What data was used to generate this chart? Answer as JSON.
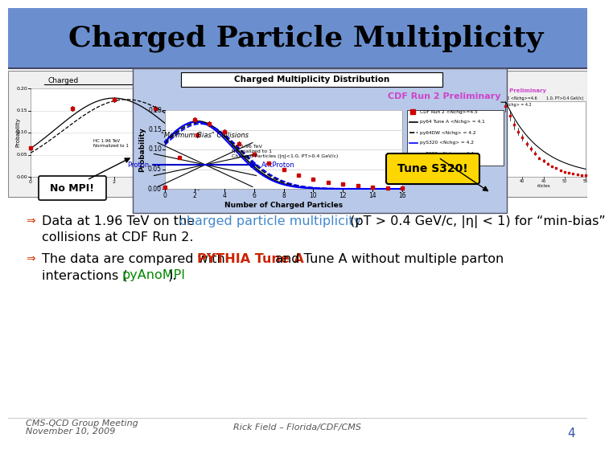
{
  "title": "Charged Particle Multiplicity",
  "title_bg": "#6B8FCE",
  "slide_bg": "#FFFFFF",
  "plot_main_bg": "#B8C8E8",
  "plot_side_bg": "#E8E8E8",
  "plot_inner_bg": "#D0D8F0",
  "nomi_label": "No MPI!",
  "tune_label": "Tune S320!",
  "tune_bg": "#FFD700",
  "collisions_label": "\"Minimum Bias\" Collisions",
  "proton_label": "Proton",
  "antiproton_label": "AntProton",
  "arrow_color": "#0000CC",
  "bullet1_pre": "Data at 1.96 TeV on the ",
  "bullet1_col": "charged particle multiplicity",
  "bullet1_col_color": "#4488CC",
  "bullet1_post": " (p",
  "bullet1_sub": "T",
  "bullet1_post2": " > 0.4 GeV/c, |η| < 1) for “min-bias”",
  "bullet1_line2": "collisions at CDF Run 2.",
  "bullet2_pre": "The data are compared with ",
  "bullet2_col1": "PYTHIA Tune A",
  "bullet2_col1_color": "#CC2200",
  "bullet2_mid": " and Tune A without multiple parton",
  "bullet2_line2_pre": "interactions (",
  "bullet2_col2": "pyAnoMPI",
  "bullet2_col2_color": "#008800",
  "bullet2_line2_post": ").",
  "footer_l1": "CMS-QCD Group Meeting",
  "footer_l2": "November 10, 2009",
  "footer_c": "Rick Field – Florida/CDF/CMS",
  "footer_r": "4",
  "footer_fs": 8,
  "footer_color": "#555555"
}
